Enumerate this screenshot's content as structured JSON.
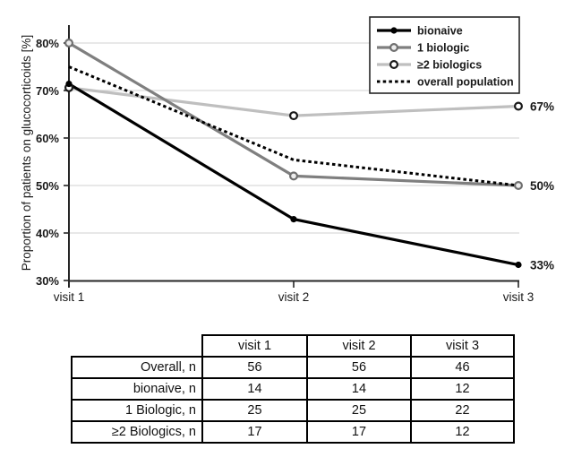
{
  "chart_data": {
    "type": "line",
    "title": "",
    "xlabel": "",
    "ylabel": "Proportion of patients on glucocorticoids [%]",
    "categories": [
      "visit 1",
      "visit 2",
      "visit 3"
    ],
    "ylim": [
      30,
      85
    ],
    "yticks": [
      30,
      40,
      50,
      60,
      70,
      80
    ],
    "ytick_labels": [
      "30%",
      "40%",
      "50%",
      "60%",
      "70%",
      "80%"
    ],
    "grid": true,
    "legend_position": "top-right",
    "series": [
      {
        "name": "bionaive",
        "values": [
          71.4,
          42.9,
          33.3
        ],
        "color": "#000000",
        "style": "solid",
        "marker": "filled-circle",
        "end_label": "33%"
      },
      {
        "name": "1 biologic",
        "values": [
          80.0,
          52.0,
          50.0
        ],
        "color": "#7f7f7f",
        "style": "solid",
        "marker": "open-circle-gray",
        "end_label": "50%"
      },
      {
        "name": "≥2 biologics",
        "values": [
          70.6,
          64.7,
          66.7
        ],
        "color": "#bfbfbf",
        "style": "solid",
        "marker": "open-circle-black",
        "end_label": "67%"
      },
      {
        "name": "overall population",
        "values": [
          75.0,
          55.4,
          50.0
        ],
        "color": "#000000",
        "style": "dotted",
        "marker": "none",
        "end_label": ""
      }
    ]
  },
  "table": {
    "headers": [
      "",
      "visit 1",
      "visit 2",
      "visit 3"
    ],
    "rows": [
      {
        "label": "Overall, n",
        "values": [
          "56",
          "56",
          "46"
        ]
      },
      {
        "label": "bionaive, n",
        "values": [
          "14",
          "14",
          "12"
        ]
      },
      {
        "label": "1 Biologic, n",
        "values": [
          "25",
          "25",
          "22"
        ]
      },
      {
        "label": "≥2 Biologics, n",
        "values": [
          "17",
          "17",
          "12"
        ]
      }
    ]
  },
  "colors": {
    "grid": "#d9d9d9",
    "axis": "#262626",
    "text": "#1a1a1a",
    "marker_gray_stroke": "#6f6f6f",
    "marker_gray_fill": "#ededed",
    "marker_black_stroke": "#1a1a1a",
    "marker_fill_white": "#ffffff",
    "background": "#ffffff"
  }
}
